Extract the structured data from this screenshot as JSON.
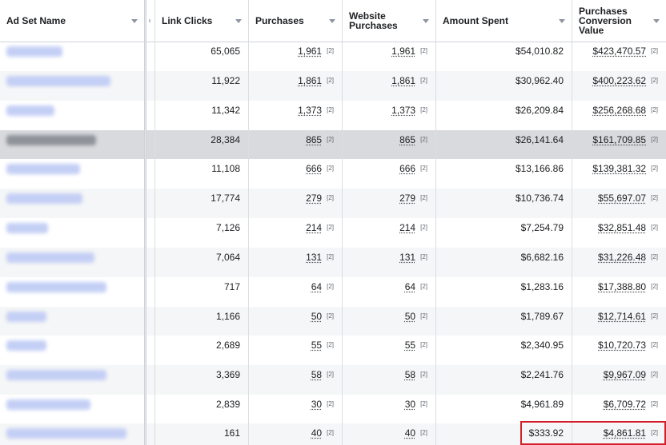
{
  "columns": [
    {
      "key": "name",
      "label": "Ad Set Name"
    },
    {
      "key": "link_clicks",
      "label": "Link Clicks"
    },
    {
      "key": "purchases",
      "label": "Purchases"
    },
    {
      "key": "website_purchases",
      "label": "Website Purchases"
    },
    {
      "key": "amount_spent",
      "label": "Amount Spent"
    },
    {
      "key": "conversion_value",
      "label": "Purchases Conversion Value"
    }
  ],
  "footnote_marker": "[2]",
  "rows": [
    {
      "link_clicks": "65,065",
      "purchases": "1,961",
      "website_purchases": "1,961",
      "amount_spent": "$54,010.82",
      "conversion_value": "$423,470.57"
    },
    {
      "link_clicks": "11,922",
      "purchases": "1,861",
      "website_purchases": "1,861",
      "amount_spent": "$30,962.40",
      "conversion_value": "$400,223.62"
    },
    {
      "link_clicks": "11,342",
      "purchases": "1,373",
      "website_purchases": "1,373",
      "amount_spent": "$26,209.84",
      "conversion_value": "$256,268.68"
    },
    {
      "link_clicks": "28,384",
      "purchases": "865",
      "website_purchases": "865",
      "amount_spent": "$26,141.64",
      "conversion_value": "$161,709.85",
      "selected": true
    },
    {
      "link_clicks": "11,108",
      "purchases": "666",
      "website_purchases": "666",
      "amount_spent": "$13,166.86",
      "conversion_value": "$139,381.32"
    },
    {
      "link_clicks": "17,774",
      "purchases": "279",
      "website_purchases": "279",
      "amount_spent": "$10,736.74",
      "conversion_value": "$55,697.07"
    },
    {
      "link_clicks": "7,126",
      "purchases": "214",
      "website_purchases": "214",
      "amount_spent": "$7,254.79",
      "conversion_value": "$32,851.48"
    },
    {
      "link_clicks": "7,064",
      "purchases": "131",
      "website_purchases": "131",
      "amount_spent": "$6,682.16",
      "conversion_value": "$31,226.48"
    },
    {
      "link_clicks": "717",
      "purchases": "64",
      "website_purchases": "64",
      "amount_spent": "$1,283.16",
      "conversion_value": "$17,388.80"
    },
    {
      "link_clicks": "1,166",
      "purchases": "50",
      "website_purchases": "50",
      "amount_spent": "$1,789.67",
      "conversion_value": "$12,714.61"
    },
    {
      "link_clicks": "2,689",
      "purchases": "55",
      "website_purchases": "55",
      "amount_spent": "$2,340.95",
      "conversion_value": "$10,720.73"
    },
    {
      "link_clicks": "3,369",
      "purchases": "58",
      "website_purchases": "58",
      "amount_spent": "$2,241.76",
      "conversion_value": "$9,967.09"
    },
    {
      "link_clicks": "2,839",
      "purchases": "30",
      "website_purchases": "30",
      "amount_spent": "$4,961.89",
      "conversion_value": "$6,709.72"
    },
    {
      "link_clicks": "161",
      "purchases": "40",
      "website_purchases": "40",
      "amount_spent": "$333.92",
      "conversion_value": "$4,861.81",
      "highlighted": true
    }
  ],
  "colors": {
    "link_blurred": "#c4cff5",
    "row_selected": "#d8dade",
    "row_alt": "#f5f6f7",
    "highlight_border": "#d0202a"
  }
}
